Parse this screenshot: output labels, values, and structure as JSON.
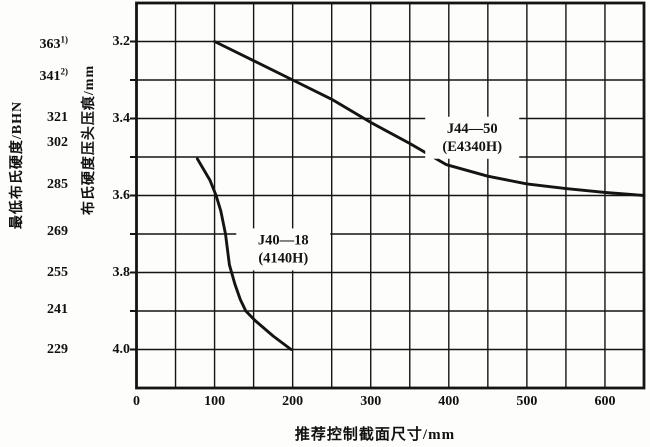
{
  "chart_data": {
    "type": "line",
    "title": "",
    "xlabel": "推荐控制截面尺寸/mm",
    "ylabel_inner": "布氏硬度压头压痕/mm",
    "ylabel_outer": "最低布氏硬度/BHN",
    "xlim": [
      0,
      650
    ],
    "ylim": [
      3.1,
      4.1
    ],
    "y_inverted_downward": true,
    "x_grid_step": 50,
    "y_grid_step": 0.1,
    "grid": "on",
    "x_tick_labels": [
      0,
      100,
      200,
      300,
      400,
      500,
      600
    ],
    "mm_tick_labels": [
      3.2,
      3.4,
      3.6,
      3.8,
      4.0
    ],
    "bhn_scale": [
      {
        "bhn": "363",
        "sup": "1)",
        "d": 3.21
      },
      {
        "bhn": "341",
        "sup": "2)",
        "d": 3.293
      },
      {
        "bhn": "321",
        "sup": "",
        "d": 3.399
      },
      {
        "bhn": "302",
        "sup": "",
        "d": 3.464
      },
      {
        "bhn": "285",
        "sup": "",
        "d": 3.573
      },
      {
        "bhn": "269",
        "sup": "",
        "d": 3.695
      },
      {
        "bhn": "255",
        "sup": "",
        "d": 3.801
      },
      {
        "bhn": "241",
        "sup": "",
        "d": 3.897
      },
      {
        "bhn": "229",
        "sup": "",
        "d": 4.0
      }
    ],
    "series": [
      {
        "name": "J44—50",
        "alt": "(E4340H)",
        "label_pos": [
          430,
          3.45
        ],
        "points": [
          [
            100,
            3.2
          ],
          [
            150,
            3.25
          ],
          [
            200,
            3.3
          ],
          [
            250,
            3.35
          ],
          [
            300,
            3.41
          ],
          [
            350,
            3.465
          ],
          [
            397,
            3.52
          ],
          [
            450,
            3.55
          ],
          [
            500,
            3.57
          ],
          [
            550,
            3.582
          ],
          [
            600,
            3.592
          ],
          [
            650,
            3.6
          ]
        ]
      },
      {
        "name": "J40—18",
        "alt": "(4140H)",
        "label_pos": [
          188,
          3.74
        ],
        "points": [
          [
            78,
            3.505
          ],
          [
            94,
            3.56
          ],
          [
            102,
            3.6
          ],
          [
            108,
            3.64
          ],
          [
            114,
            3.7
          ],
          [
            119,
            3.78
          ],
          [
            126,
            3.83
          ],
          [
            133,
            3.87
          ],
          [
            140,
            3.9
          ],
          [
            152,
            3.925
          ],
          [
            175,
            3.965
          ],
          [
            198,
            4.0
          ]
        ]
      }
    ],
    "line_color": "#141414"
  }
}
